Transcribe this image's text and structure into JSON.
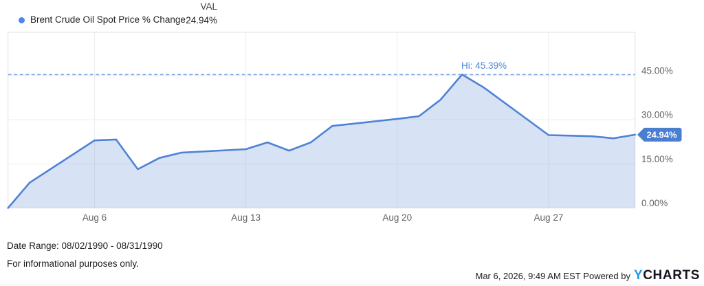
{
  "legend": {
    "series_label": "Brent Crude Oil Spot Price % Change",
    "val_header": "VAL",
    "val_value": "24.94%",
    "dot_color": "#4f87e8"
  },
  "chart_data": {
    "type": "area",
    "title": "Brent Crude Oil Spot Price % Change",
    "xlabel": "",
    "ylabel": "% Change",
    "date_range": [
      "1990-08-02",
      "1990-08-31"
    ],
    "x_day_of_month": [
      2,
      3,
      6,
      7,
      8,
      9,
      10,
      13,
      14,
      15,
      16,
      17,
      20,
      21,
      22,
      23,
      24,
      27,
      28,
      29,
      30,
      31
    ],
    "series": [
      {
        "name": "Brent Crude Oil Spot Price % Change",
        "values": [
          0.0,
          8.6,
          23.0,
          23.3,
          13.2,
          17.0,
          18.8,
          20.0,
          22.3,
          19.5,
          22.3,
          27.9,
          30.3,
          31.2,
          36.8,
          45.39,
          41.0,
          24.8,
          24.6,
          24.4,
          23.7,
          24.94
        ]
      }
    ],
    "x_ticks": [
      {
        "day": 6,
        "label": "Aug 6"
      },
      {
        "day": 13,
        "label": "Aug 13"
      },
      {
        "day": 20,
        "label": "Aug 20"
      },
      {
        "day": 27,
        "label": "Aug 27"
      }
    ],
    "y_ticks": [
      {
        "value": 45,
        "label": "45.00%"
      },
      {
        "value": 30,
        "label": "30.00%"
      },
      {
        "value": 15,
        "label": "15.00%"
      },
      {
        "value": 0,
        "label": "0.00%"
      }
    ],
    "ylim": [
      -1.5,
      59.8
    ],
    "grid": true,
    "legend_position": "top-left",
    "hi_annotation": {
      "label": "Hi: 45.39%",
      "value": 45.39
    },
    "last_value_badge": {
      "label": "24.94%",
      "value": 24.94
    },
    "colors": {
      "line": "#4e82d6",
      "fill": "rgba(93,134,212,0.24)",
      "dashed_hi_line": "#84a8e6",
      "hi_text": "#4d86d8",
      "badge_bg": "#4a7ed0",
      "badge_text": "#ffffff",
      "gridline": "#ededed",
      "plot_border": "#e0e0e0",
      "tick_text": "#646464"
    }
  },
  "footer": {
    "date_range": "Date Range: 08/02/1990 - 08/31/1990",
    "disclaimer": "For informational purposes only.",
    "timestamp": "Mar 6, 2026, 9:49 AM EST",
    "powered_by": " Powered by",
    "logo_y": "Y",
    "logo_charts": "CHARTS"
  }
}
